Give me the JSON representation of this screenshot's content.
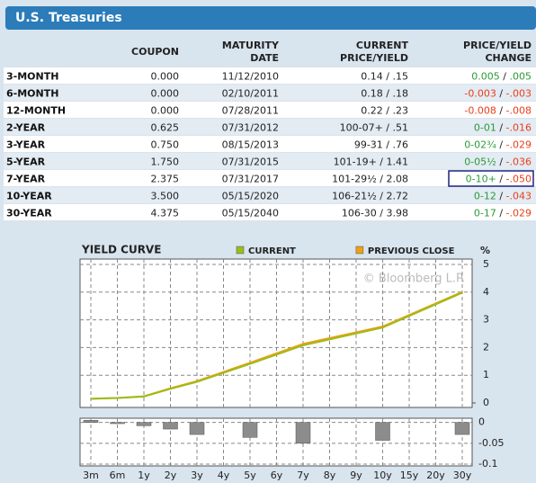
{
  "header": {
    "title": "U.S. Treasuries"
  },
  "table": {
    "columns": [
      [
        "COUPON"
      ],
      [
        "MATURITY",
        "DATE"
      ],
      [
        "CURRENT",
        "PRICE/YIELD"
      ],
      [
        "PRICE/YIELD",
        "CHANGE"
      ]
    ],
    "selected_row": 6,
    "rows": [
      {
        "name": "3-MONTH",
        "coupon": "0.000",
        "maturity": "11/12/2010",
        "price": "0.14",
        "yield": ".15",
        "price_change": "0.005",
        "yield_change": ".005"
      },
      {
        "name": "6-MONTH",
        "coupon": "0.000",
        "maturity": "02/10/2011",
        "price": "0.18",
        "yield": ".18",
        "price_change": "-0.003",
        "yield_change": "-.003"
      },
      {
        "name": "12-MONTH",
        "coupon": "0.000",
        "maturity": "07/28/2011",
        "price": "0.22",
        "yield": ".23",
        "price_change": "-0.008",
        "yield_change": "-.008"
      },
      {
        "name": "2-YEAR",
        "coupon": "0.625",
        "maturity": "07/31/2012",
        "price": "100-07+",
        "yield": ".51",
        "price_change": "0-01",
        "yield_change": "-.016"
      },
      {
        "name": "3-YEAR",
        "coupon": "0.750",
        "maturity": "08/15/2013",
        "price": "99-31",
        "yield": ".76",
        "price_change": "0-02¾",
        "yield_change": "-.029"
      },
      {
        "name": "5-YEAR",
        "coupon": "1.750",
        "maturity": "07/31/2015",
        "price": "101-19+",
        "yield": "1.41",
        "price_change": "0-05½",
        "yield_change": "-.036"
      },
      {
        "name": "7-YEAR",
        "coupon": "2.375",
        "maturity": "07/31/2017",
        "price": "101-29½",
        "yield": "2.08",
        "price_change": "0-10+",
        "yield_change": "-.050"
      },
      {
        "name": "10-YEAR",
        "coupon": "3.500",
        "maturity": "05/15/2020",
        "price": "106-21½",
        "yield": "2.72",
        "price_change": "0-12",
        "yield_change": "-.043"
      },
      {
        "name": "30-YEAR",
        "coupon": "4.375",
        "maturity": "05/15/2040",
        "price": "106-30",
        "yield": "3.98",
        "price_change": "0-17",
        "yield_change": "-.029"
      }
    ]
  },
  "chart_data": [
    {
      "type": "line",
      "title": "YIELD CURVE",
      "watermark": "© Bloomberg L.P.",
      "y_label": "%",
      "categories": [
        "3m",
        "6m",
        "1y",
        "2y",
        "3y",
        "4y",
        "5y",
        "6y",
        "7y",
        "8y",
        "9y",
        "10y",
        "15y",
        "20y",
        "30y"
      ],
      "ylim": [
        0,
        5
      ],
      "yticks": [
        0,
        1,
        2,
        3,
        4,
        5
      ],
      "grid": true,
      "series": [
        {
          "name": "CURRENT",
          "color": "#9cbc1c",
          "x": [
            "3m",
            "6m",
            "1y",
            "2y",
            "3y",
            "5y",
            "7y",
            "10y",
            "30y"
          ],
          "values": [
            0.15,
            0.18,
            0.23,
            0.51,
            0.76,
            1.41,
            2.08,
            2.72,
            3.98
          ]
        },
        {
          "name": "PREVIOUS CLOSE",
          "color": "#f0a010",
          "x": [
            "3m",
            "6m",
            "1y",
            "2y",
            "3y",
            "5y",
            "7y",
            "10y",
            "30y"
          ],
          "values": [
            0.15,
            0.18,
            0.24,
            0.53,
            0.79,
            1.45,
            2.13,
            2.76,
            4.01
          ]
        }
      ]
    },
    {
      "type": "bar",
      "color": "#8c8c8c",
      "x": [
        "3m",
        "6m",
        "1y",
        "2y",
        "3y",
        "5y",
        "7y",
        "10y",
        "30y"
      ],
      "values": [
        0.005,
        -0.003,
        -0.008,
        -0.016,
        -0.029,
        -0.036,
        -0.05,
        -0.043,
        -0.029
      ],
      "ylim": [
        -0.1,
        0.01
      ],
      "yticks": [
        0,
        -0.05,
        -0.1
      ],
      "grid": true
    }
  ]
}
